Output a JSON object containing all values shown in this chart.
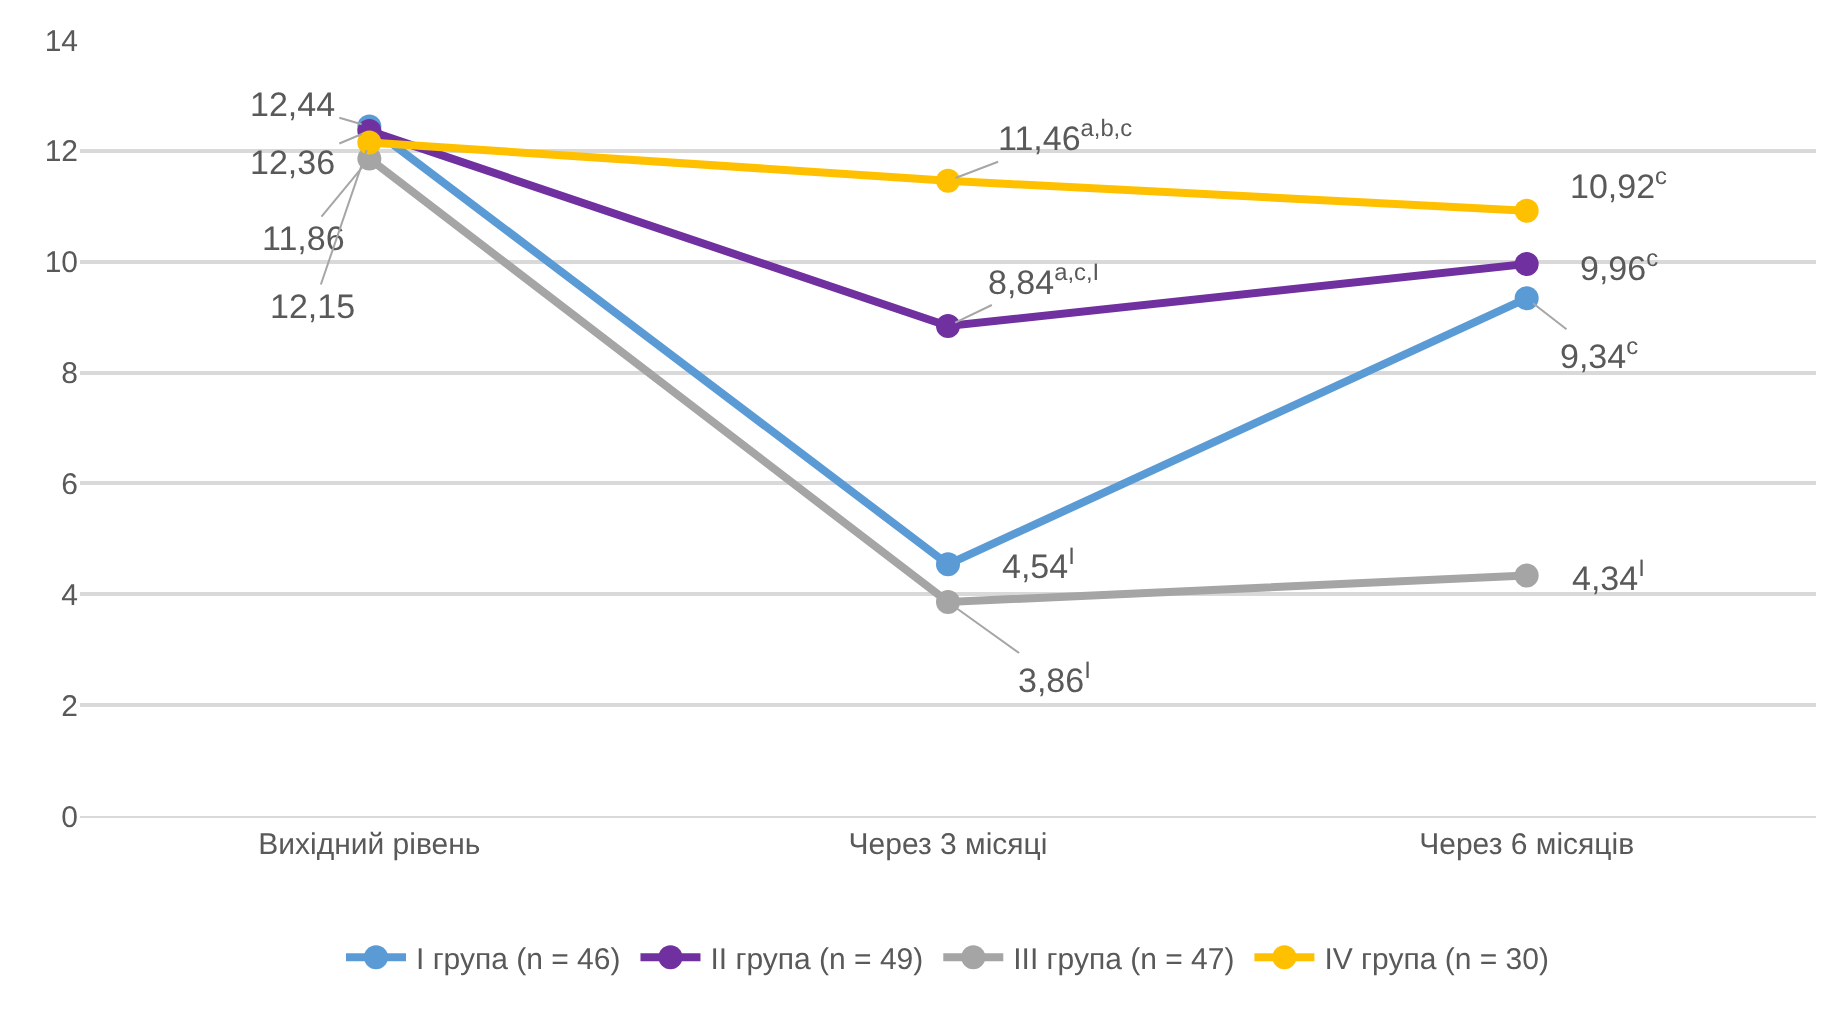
{
  "chart_data": {
    "type": "line",
    "categories": [
      "Вихідний рівень",
      "Через 3 місяці",
      "Через 6 місяців"
    ],
    "series": [
      {
        "name": "I група (n = 46)",
        "color": "#5b9bd5",
        "values": [
          12.44,
          4.54,
          9.34
        ],
        "value_labels": [
          "12,44",
          "4,54$^{I}$",
          "9,34$^{c}$"
        ]
      },
      {
        "name": "II група (n = 49)",
        "color": "#7030a0",
        "values": [
          12.36,
          8.84,
          9.96
        ],
        "value_labels": [
          "12,36",
          "8,84$^{a,c,I}$",
          "9,96$^{c}$"
        ]
      },
      {
        "name": "III група (n = 47)",
        "color": "#a5a5a5",
        "values": [
          11.86,
          3.86,
          4.34
        ],
        "value_labels": [
          "11,86",
          "3,86$^{I}$",
          "4,34$^{I}$"
        ]
      },
      {
        "name": "IV група (n = 30)",
        "color": "#ffc000",
        "values": [
          12.15,
          11.46,
          10.92
        ],
        "value_labels": [
          "12,15",
          "11,46$^{a,b,c}$",
          "10,92$^{c}$"
        ]
      }
    ],
    "ylim": [
      0,
      14
    ],
    "yticks": [
      0,
      2,
      4,
      6,
      8,
      10,
      12,
      14
    ],
    "grid": "y",
    "legend": "bottom",
    "marker": "circle",
    "line_style": "solid"
  }
}
